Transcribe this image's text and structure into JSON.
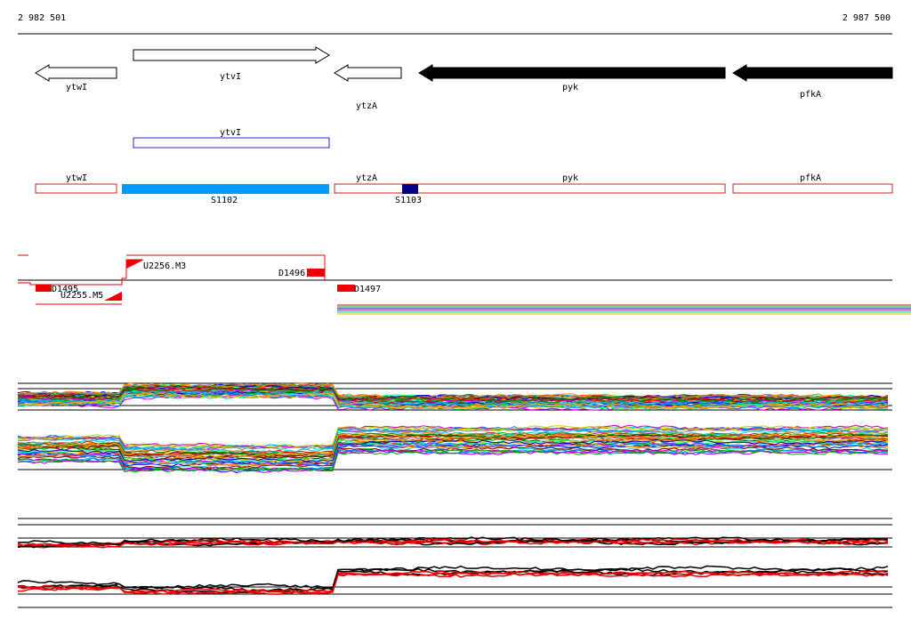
{
  "ruler": {
    "start": "2 982 501",
    "end": "2 987 500"
  },
  "genes": [
    {
      "label": "ytwI"
    },
    {
      "label": "ytvI"
    },
    {
      "label": "ytzA"
    },
    {
      "label": "pyk"
    },
    {
      "label": "pfkA"
    }
  ],
  "annotations": [
    {
      "label": "ytvI"
    }
  ],
  "features": [
    {
      "label": "ytwI"
    },
    {
      "label": "ytzA"
    },
    {
      "label": "pyk"
    },
    {
      "label": "pfkA"
    },
    {
      "label": "S1102"
    },
    {
      "label": "S1103"
    }
  ],
  "segments": [
    {
      "label": "D1495"
    },
    {
      "label": "U2255.M5"
    },
    {
      "label": "U2256.M3"
    },
    {
      "label": "D1496"
    },
    {
      "label": "D1497"
    }
  ]
}
